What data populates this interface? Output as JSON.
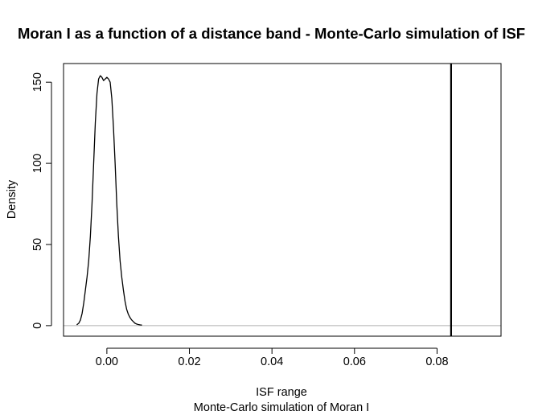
{
  "chart_data": {
    "type": "line",
    "title": "Moran I as a function of a distance band - Monte-Carlo simulation of ISF",
    "xlabel": "ISF range",
    "subtitle": "Monte-Carlo simulation of Moran I",
    "ylabel": "Density",
    "xlim": [
      -0.0105,
      0.0955
    ],
    "ylim": [
      -6.5,
      161.5
    ],
    "x_ticks": [
      0.0,
      0.02,
      0.04,
      0.06,
      0.08
    ],
    "x_tick_labels": [
      "0.00",
      "0.02",
      "0.04",
      "0.06",
      "0.08"
    ],
    "y_ticks": [
      0,
      50,
      100,
      150
    ],
    "y_tick_labels": [
      "0",
      "50",
      "100",
      "150"
    ],
    "baseline": 0,
    "baseline_color": "#b0b0b0",
    "observed_moran_i": 0.0834,
    "grid": false,
    "series": [
      {
        "color": "#000000",
        "x": [
          -0.0073,
          -0.0068,
          -0.0064,
          -0.006,
          -0.0056,
          -0.0052,
          -0.0048,
          -0.0044,
          -0.004,
          -0.0036,
          -0.0032,
          -0.0028,
          -0.0024,
          -0.002,
          -0.0016,
          -0.0012,
          -0.0008,
          -0.0004,
          0.0,
          0.0004,
          0.0008,
          0.0012,
          0.0016,
          0.002,
          0.0024,
          0.0028,
          0.0032,
          0.0036,
          0.004,
          0.0044,
          0.0048,
          0.0052,
          0.0056,
          0.006,
          0.0064,
          0.0068,
          0.0072,
          0.0076,
          0.008,
          0.0085
        ],
        "y": [
          0.5,
          1.5,
          3.5,
          7.5,
          14,
          22,
          30,
          40,
          55,
          75,
          100,
          125,
          143,
          152,
          154,
          153,
          151,
          152,
          153,
          152,
          150,
          140,
          122,
          100,
          75,
          55,
          40,
          30,
          22,
          15,
          10,
          7,
          5,
          3.5,
          2.5,
          1.5,
          1,
          0.7,
          0.5,
          0.3
        ]
      }
    ]
  }
}
